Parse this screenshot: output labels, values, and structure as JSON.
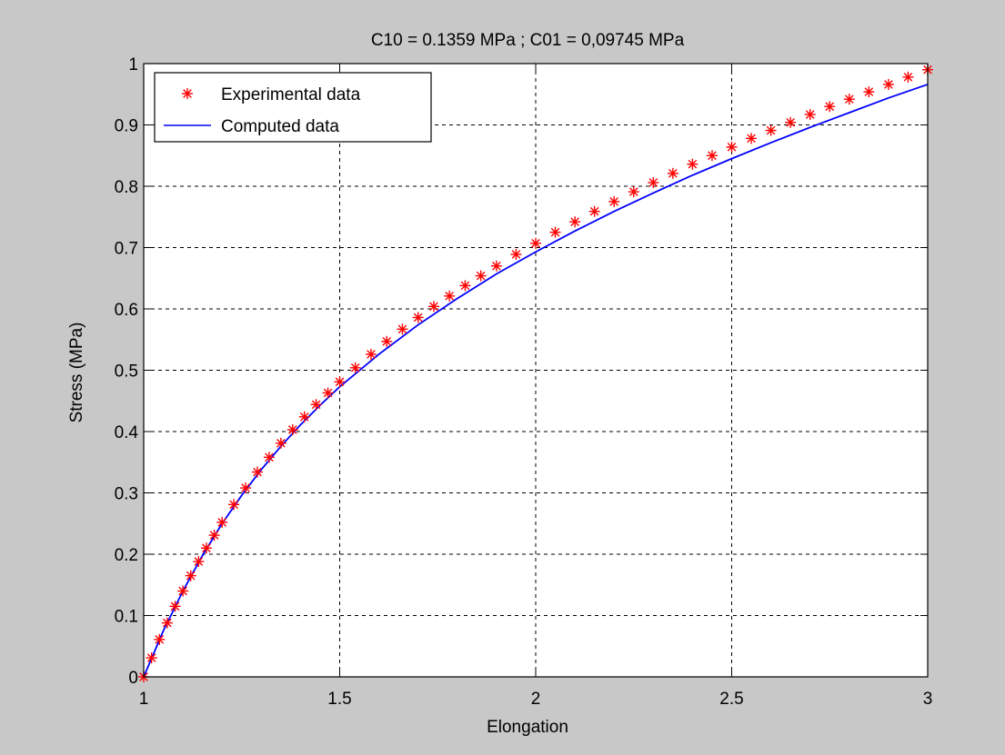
{
  "chart_data": {
    "type": "line",
    "title": "C10 = 0.1359 MPa ; C01 = 0,09745 MPa",
    "xlabel": "Elongation",
    "ylabel": "Stress (MPa)",
    "xlim": [
      1,
      3
    ],
    "ylim": [
      0,
      1
    ],
    "xticks": [
      1,
      1.5,
      2,
      2.5,
      3
    ],
    "xtick_labels": [
      "1",
      "1.5",
      "2",
      "2.5",
      "3"
    ],
    "yticks": [
      0,
      0.1,
      0.2,
      0.3,
      0.4,
      0.5,
      0.6,
      0.7,
      0.8,
      0.9,
      1
    ],
    "ytick_labels": [
      "0",
      "0.1",
      "0.2",
      "0.3",
      "0.4",
      "0.5",
      "0.6",
      "0.7",
      "0.8",
      "0.9",
      "1"
    ],
    "grid": true,
    "legend_position": "top-left",
    "series": [
      {
        "name": "Experimental data",
        "style": "markers",
        "marker": "asterisk",
        "color": "#ff0000",
        "x": [
          1.0,
          1.02,
          1.04,
          1.06,
          1.08,
          1.1,
          1.12,
          1.14,
          1.16,
          1.18,
          1.2,
          1.23,
          1.26,
          1.29,
          1.32,
          1.35,
          1.38,
          1.41,
          1.44,
          1.47,
          1.5,
          1.54,
          1.58,
          1.62,
          1.66,
          1.7,
          1.74,
          1.78,
          1.82,
          1.86,
          1.9,
          1.95,
          2.0,
          2.05,
          2.1,
          2.15,
          2.2,
          2.25,
          2.3,
          2.35,
          2.4,
          2.45,
          2.5,
          2.55,
          2.6,
          2.65,
          2.7,
          2.75,
          2.8,
          2.85,
          2.9,
          2.95,
          3.0
        ],
        "y": [
          0.0,
          0.031,
          0.061,
          0.088,
          0.115,
          0.14,
          0.165,
          0.188,
          0.21,
          0.231,
          0.252,
          0.281,
          0.308,
          0.334,
          0.358,
          0.381,
          0.403,
          0.424,
          0.444,
          0.463,
          0.481,
          0.504,
          0.526,
          0.547,
          0.567,
          0.586,
          0.604,
          0.621,
          0.638,
          0.654,
          0.67,
          0.689,
          0.707,
          0.725,
          0.742,
          0.759,
          0.775,
          0.791,
          0.806,
          0.821,
          0.836,
          0.85,
          0.864,
          0.878,
          0.891,
          0.904,
          0.917,
          0.93,
          0.942,
          0.954,
          0.966,
          0.978,
          0.99
        ]
      },
      {
        "name": "Computed data",
        "style": "line",
        "color": "#0000ff",
        "x": [
          1.0,
          1.05,
          1.1,
          1.15,
          1.2,
          1.25,
          1.3,
          1.35,
          1.4,
          1.45,
          1.5,
          1.6,
          1.7,
          1.8,
          1.9,
          2.0,
          2.1,
          2.2,
          2.3,
          2.4,
          2.5,
          2.6,
          2.7,
          2.8,
          2.9,
          3.0
        ],
        "y": [
          0.0,
          0.075,
          0.14,
          0.198,
          0.25,
          0.296,
          0.338,
          0.376,
          0.411,
          0.443,
          0.473,
          0.526,
          0.574,
          0.617,
          0.657,
          0.693,
          0.727,
          0.759,
          0.789,
          0.818,
          0.845,
          0.871,
          0.896,
          0.92,
          0.944,
          0.966
        ]
      }
    ]
  },
  "colors": {
    "figure_background": "#c8c8c8",
    "axes_background": "#ffffff",
    "experimental": "#ff0000",
    "computed": "#0000ff"
  }
}
